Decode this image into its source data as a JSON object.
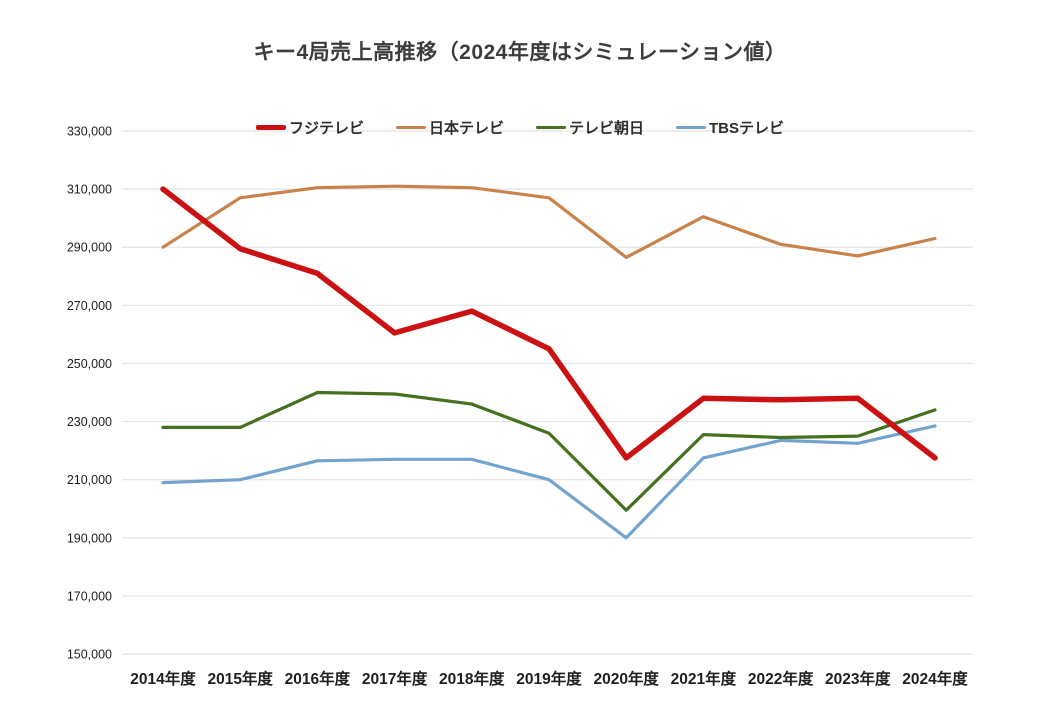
{
  "title": "キー4局売上高推移（2024年度はシミュレーション値）",
  "colors": {
    "background": "#ffffff",
    "grid": "#e4e4e4",
    "axis_text": "#1f1f1f",
    "title_text": "#3c3c3c",
    "fuji_red": "#cc1113",
    "ntv_orange": "#c9824c",
    "asahi_green": "#44701f",
    "tbs_blue": "#74a3cd"
  },
  "chart_data": {
    "type": "line",
    "title": "キー4局売上高推移（2024年度はシミュレーション値）",
    "xlabel": "",
    "ylabel": "",
    "categories": [
      "2014年度",
      "2015年度",
      "2016年度",
      "2017年度",
      "2018年度",
      "2019年度",
      "2020年度",
      "2021年度",
      "2022年度",
      "2023年度",
      "2024年度"
    ],
    "series": [
      {
        "name": "フジテレビ",
        "color": "#cc1113",
        "emphasis": true,
        "values": [
          310000,
          289500,
          281000,
          260500,
          268000,
          255000,
          217500,
          238000,
          237500,
          238000,
          217500
        ]
      },
      {
        "name": "日本テレビ",
        "color": "#c9824c",
        "emphasis": false,
        "values": [
          290000,
          307000,
          310500,
          311000,
          310500,
          307000,
          286500,
          300500,
          291000,
          287000,
          293000
        ]
      },
      {
        "name": "テレビ朝日",
        "color": "#44701f",
        "emphasis": false,
        "values": [
          228000,
          228000,
          240000,
          239500,
          236000,
          226000,
          199500,
          225500,
          224500,
          225000,
          234000
        ]
      },
      {
        "name": "TBSテレビ",
        "color": "#74a3cd",
        "emphasis": false,
        "values": [
          209000,
          210000,
          216500,
          217000,
          217000,
          210000,
          190000,
          217500,
          223500,
          222500,
          228500
        ]
      }
    ],
    "ylim": [
      150000,
      330000
    ],
    "ytick_step": 20000,
    "y_tick_labels": [
      "330,000",
      "310,000",
      "290,000",
      "270,000",
      "250,000",
      "230,000",
      "210,000",
      "190,000",
      "170,000",
      "150,000"
    ],
    "grid": true,
    "legend_position": "top"
  }
}
